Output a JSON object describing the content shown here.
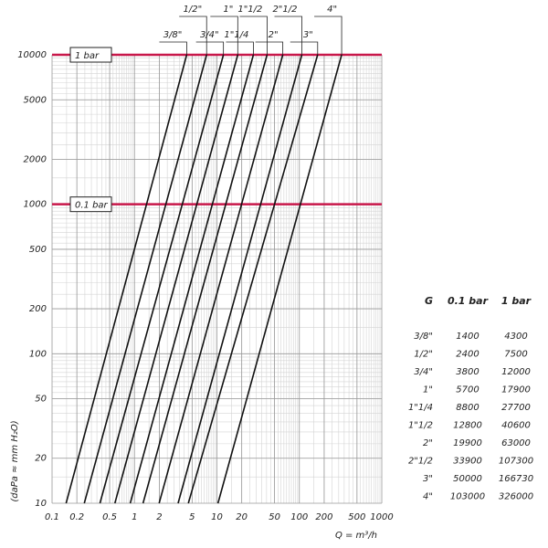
{
  "chart_data": {
    "type": "line",
    "x_label": "Q = m³/h",
    "y_label": "(daPa ≈ mm H₂O)",
    "xlog": true,
    "ylog": true,
    "grid": true,
    "color": "#111111",
    "xlim": [
      0.1,
      1000
    ],
    "ylim": [
      10,
      10000
    ],
    "xticks": [
      0.1,
      0.2,
      0.5,
      1,
      2,
      5,
      10,
      20,
      50,
      100,
      200,
      500,
      1000
    ],
    "yticks": [
      10,
      20,
      50,
      100,
      200,
      500,
      1000,
      2000,
      5000,
      10000
    ],
    "reference_lines": [
      {
        "value": 10000,
        "label": "1 bar",
        "color": "#c8174a"
      },
      {
        "value": 1000,
        "label": "0.1 bar",
        "color": "#c8174a"
      }
    ],
    "series": [
      {
        "name": "3/8\"",
        "x": [
          0.148,
          1.4,
          4.3
        ],
        "values": [
          10,
          1000,
          10000
        ]
      },
      {
        "name": "1/2\"",
        "x": [
          0.246,
          2.4,
          7.5
        ],
        "values": [
          10,
          1000,
          10000
        ]
      },
      {
        "name": "3/4\"",
        "x": [
          0.381,
          3.8,
          12
        ],
        "values": [
          10,
          1000,
          10000
        ]
      },
      {
        "name": "1\"",
        "x": [
          0.578,
          5.7,
          17.9
        ],
        "values": [
          10,
          1000,
          10000
        ]
      },
      {
        "name": "1\"1/4",
        "x": [
          0.888,
          8.8,
          27.7
        ],
        "values": [
          10,
          1000,
          10000
        ]
      },
      {
        "name": "1\"1/2",
        "x": [
          1.27,
          12.8,
          40.6
        ],
        "values": [
          10,
          1000,
          10000
        ]
      },
      {
        "name": "2\"",
        "x": [
          1.99,
          19.9,
          63
        ],
        "values": [
          10,
          1000,
          10000
        ]
      },
      {
        "name": "2\"1/2",
        "x": [
          3.38,
          33.9,
          107.3
        ],
        "values": [
          10,
          1000,
          10000
        ]
      },
      {
        "name": "3\"",
        "x": [
          4.5,
          50,
          166.73
        ],
        "values": [
          10,
          1000,
          10000
        ]
      },
      {
        "name": "4\"",
        "x": [
          10.3,
          103,
          326
        ],
        "values": [
          10,
          1000,
          10000
        ]
      }
    ]
  },
  "table": {
    "columns": [
      "G",
      "0.1 bar",
      "1 bar"
    ],
    "rows": [
      [
        "3/8\"",
        1400,
        4300
      ],
      [
        "1/2\"",
        2400,
        7500
      ],
      [
        "3/4\"",
        3800,
        12000
      ],
      [
        "1\"",
        5700,
        17900
      ],
      [
        "1\"1/4",
        8800,
        27700
      ],
      [
        "1\"1/2",
        12800,
        40600
      ],
      [
        "2\"",
        19900,
        63000
      ],
      [
        "2\"1/2",
        33900,
        107300
      ],
      [
        "3\"",
        50000,
        166730
      ],
      [
        "4\"",
        103000,
        326000
      ]
    ]
  }
}
